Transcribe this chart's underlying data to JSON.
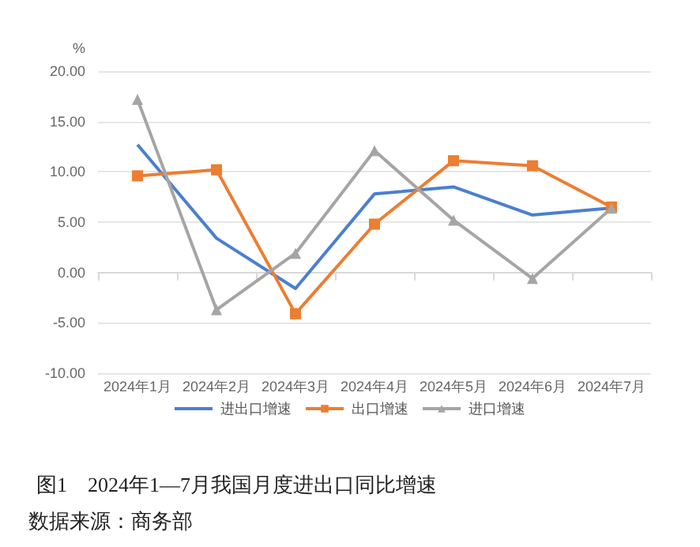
{
  "chart_data": {
    "type": "line",
    "title": "图1　2024年1—7月我国月度进出口同比增速",
    "ylabel": "%",
    "annotations": [
      "数据来源：商务部"
    ],
    "categories": [
      "2024年1月",
      "2024年2月",
      "2024年3月",
      "2024年4月",
      "2024年5月",
      "2024年6月",
      "2024年7月"
    ],
    "series": [
      {
        "name": "进出口增速",
        "color": "#4a7fd0",
        "marker": "none",
        "values": [
          12.7,
          3.4,
          -1.6,
          7.8,
          8.5,
          5.7,
          6.4
        ]
      },
      {
        "name": "出口增速",
        "color": "#ed7d31",
        "marker": "square",
        "values": [
          9.6,
          10.2,
          -4.1,
          4.8,
          11.1,
          10.6,
          6.5
        ]
      },
      {
        "name": "进口增速",
        "color": "#a5a5a5",
        "marker": "triangle",
        "values": [
          17.2,
          -3.7,
          1.9,
          12.1,
          5.2,
          -0.6,
          6.4
        ]
      }
    ],
    "ylim": [
      -10,
      20
    ],
    "yticks": [
      {
        "value": -10,
        "label": "-10.00"
      },
      {
        "value": -5,
        "label": "-5.00"
      },
      {
        "value": 0,
        "label": "0.00"
      },
      {
        "value": 5,
        "label": "5.00"
      },
      {
        "value": 10,
        "label": "10.00"
      },
      {
        "value": 15,
        "label": "15.00"
      },
      {
        "value": 20,
        "label": "20.00"
      }
    ],
    "grid": "y",
    "legend": "bottom"
  }
}
